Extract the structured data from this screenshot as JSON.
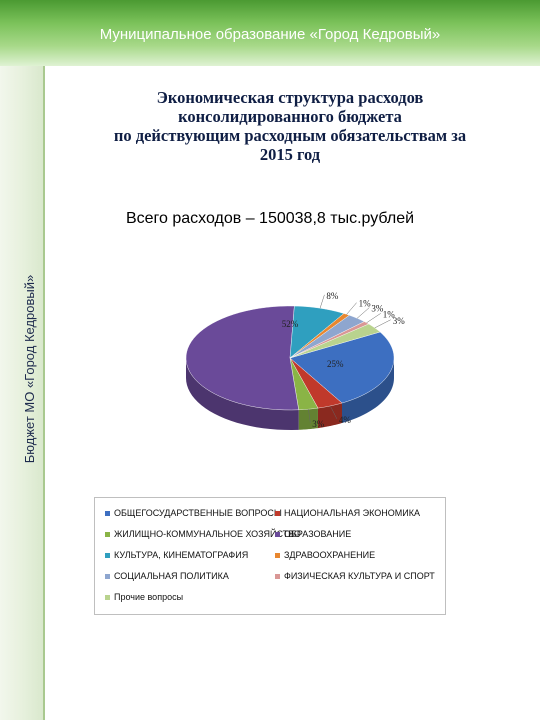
{
  "header": {
    "title": "Муниципальное образование «Город Кедровый»"
  },
  "sidebar": {
    "vertical_text": "Бюджет МО «Город Кедровый»"
  },
  "slide": {
    "title_lines": [
      "Экономическая структура расходов",
      "консолидированного бюджета",
      "по действующим расходным обязательствам за",
      "2015 год"
    ],
    "total_text": "Всего расходов – 150038,8 тыс.рублей"
  },
  "chart_data": {
    "type": "pie",
    "title": "",
    "labels": [
      "ОБЩЕГОСУДАРСТВЕННЫЕ ВОПРОСЫ",
      "НАЦИОНАЛЬНАЯ ЭКОНОМИКА",
      "ЖИЛИЩНО-КОММУНАЛЬНОЕ ХОЗЯЙСТВО",
      "ОБРАЗОВАНИЕ",
      "КУЛЬТУРА, КИНЕМАТОГРАФИЯ",
      "ЗДРАВООХРАНЕНИЕ",
      "СОЦИАЛЬНАЯ ПОЛИТИКА",
      "ФИЗИЧЕСКАЯ КУЛЬТУРА И СПОРТ",
      "Прочие вопросы"
    ],
    "values": [
      25,
      4,
      3,
      52,
      8,
      1,
      3,
      1,
      3
    ],
    "data_labels": [
      "25%",
      "4%",
      "3%",
      "52%",
      "8%",
      "1%",
      "3%",
      "1%",
      "3%"
    ],
    "colors": [
      "#3d6fc1",
      "#c0392b",
      "#8ab446",
      "#6a4a99",
      "#2f9fbf",
      "#e8872f",
      "#8ea6cf",
      "#d99795",
      "#b9d38e"
    ],
    "legend_position": "bottom"
  }
}
